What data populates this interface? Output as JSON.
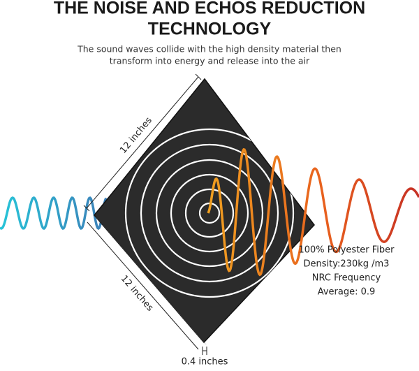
{
  "header": {
    "title_lines": [
      "THE NOISE AND ECHOS REDUCTION",
      "TECHNOLOGY"
    ],
    "subtitle_lines": [
      "The sound waves collide with the high density material then",
      "transform into energy and release into the air"
    ]
  },
  "dimensions": {
    "top_edge": "12 inches",
    "bottom_edge": "12 inches",
    "thickness": "0.4 inches"
  },
  "specs": [
    "100% Polyester Fiber",
    "Density:230kg /m3",
    "NRC Frequency",
    "Average: 0.9"
  ]
}
